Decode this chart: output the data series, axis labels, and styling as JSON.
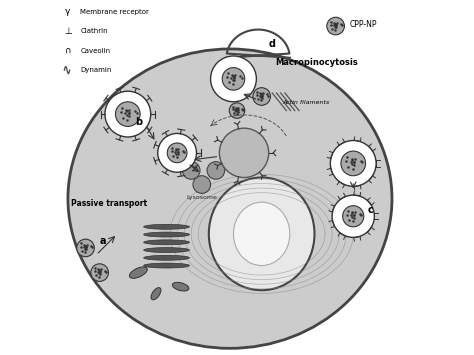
{
  "title": "",
  "background_color": "#ffffff",
  "figure_width": 4.74,
  "figure_height": 3.55,
  "colors": {
    "cell_fill": "#cccccc",
    "cell_border": "#444444",
    "vesicle_fill": "#ffffff",
    "vesicle_border": "#333333",
    "np_fill": "#aaaaaa",
    "np_dot": "#333333",
    "nucleus_fill": "#e0e0e0",
    "nucleus_border": "#555555",
    "golgi_fill": "#555555",
    "lysosome_fill": "#999999",
    "text_color": "#000000",
    "arrow_color": "#333333",
    "mito_fill": "#777777"
  },
  "legend": [
    {
      "symbol": "γ",
      "label": "Membrane receptor"
    },
    {
      "symbol": "⊥",
      "label": "Clathrin"
    },
    {
      "symbol": "∩",
      "label": "Caveolin"
    },
    {
      "symbol": "~",
      "label": "Dynamin"
    }
  ]
}
